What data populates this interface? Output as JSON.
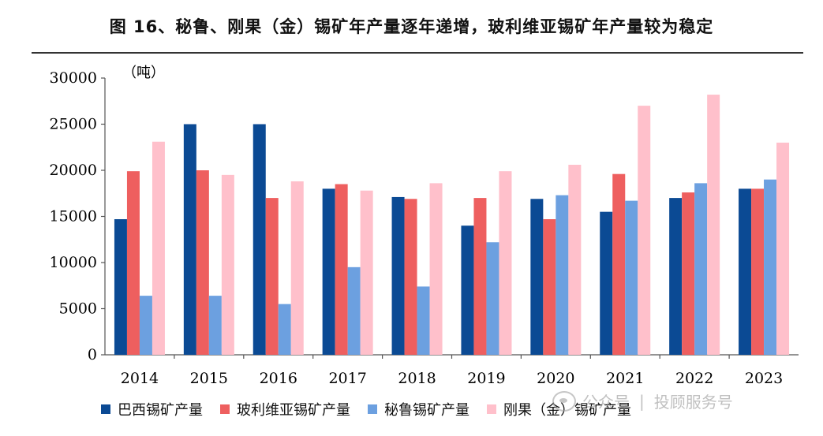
{
  "title": "图 16、秘鲁、刚果（金）锡矿年产量逐年递增，玻利维亚锡矿年产量较为稳定",
  "watermark": {
    "left": "公众号",
    "right": "投顾服务号"
  },
  "chart_data": {
    "type": "bar",
    "unit_label": "（吨）",
    "categories": [
      "2014",
      "2015",
      "2016",
      "2017",
      "2018",
      "2019",
      "2020",
      "2021",
      "2022",
      "2023"
    ],
    "ylim": [
      0,
      30000
    ],
    "yticks": [
      0,
      5000,
      10000,
      15000,
      20000,
      25000,
      30000
    ],
    "grid": false,
    "legend": "bottom",
    "series": [
      {
        "name": "巴西锡矿产量",
        "color": "#0B4A94",
        "values": [
          14700,
          25000,
          25000,
          18000,
          17100,
          14000,
          16900,
          15500,
          17000,
          18000
        ]
      },
      {
        "name": "玻利维亚锡矿产量",
        "color": "#EE5F5F",
        "values": [
          19900,
          20000,
          17000,
          18500,
          16900,
          17000,
          14700,
          19600,
          17600,
          18000
        ]
      },
      {
        "name": "秘鲁锡矿产量",
        "color": "#6CA0E0",
        "values": [
          6400,
          6400,
          5500,
          9500,
          7400,
          12200,
          17300,
          16700,
          18600,
          19000
        ]
      },
      {
        "name": "刚果（金）锡矿产量",
        "color": "#FFC0CB",
        "values": [
          23100,
          19500,
          18800,
          17800,
          18600,
          19900,
          20600,
          27000,
          28200,
          23000
        ]
      }
    ]
  }
}
